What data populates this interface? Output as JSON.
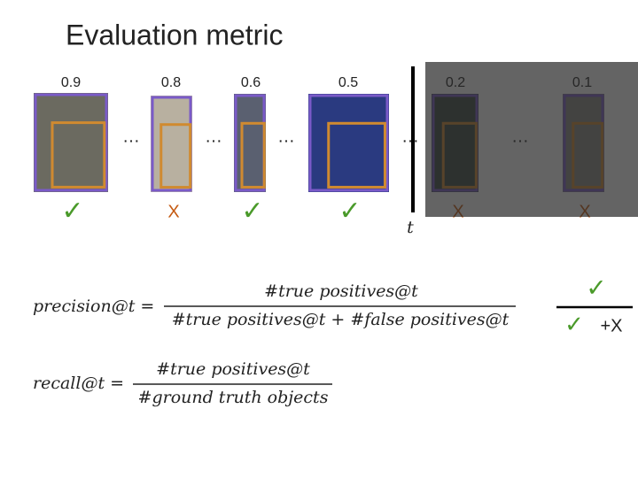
{
  "title": "Evaluation metric",
  "items": [
    {
      "score": "0.9",
      "mark": "✓"
    },
    {
      "score": "0.8",
      "mark": "X"
    },
    {
      "score": "0.6",
      "mark": "✓"
    },
    {
      "score": "0.5",
      "mark": "✓"
    },
    {
      "score": "0.2",
      "mark": "X"
    },
    {
      "score": "0.1",
      "mark": "X"
    }
  ],
  "ellipses": [
    "…",
    "…",
    "…",
    "…",
    "…"
  ],
  "threshold": "t",
  "precision": {
    "lhs": "precision@t =",
    "numerator": "#true positives@t",
    "denominator": "#true positives@t + #false positives@t"
  },
  "recall": {
    "lhs": "recall@t =",
    "numerator": "#true positives@t",
    "denominator": "#ground truth objects"
  },
  "ratio": {
    "numerator": "✓",
    "denominator_check": "✓",
    "denominator_x": "+X"
  }
}
